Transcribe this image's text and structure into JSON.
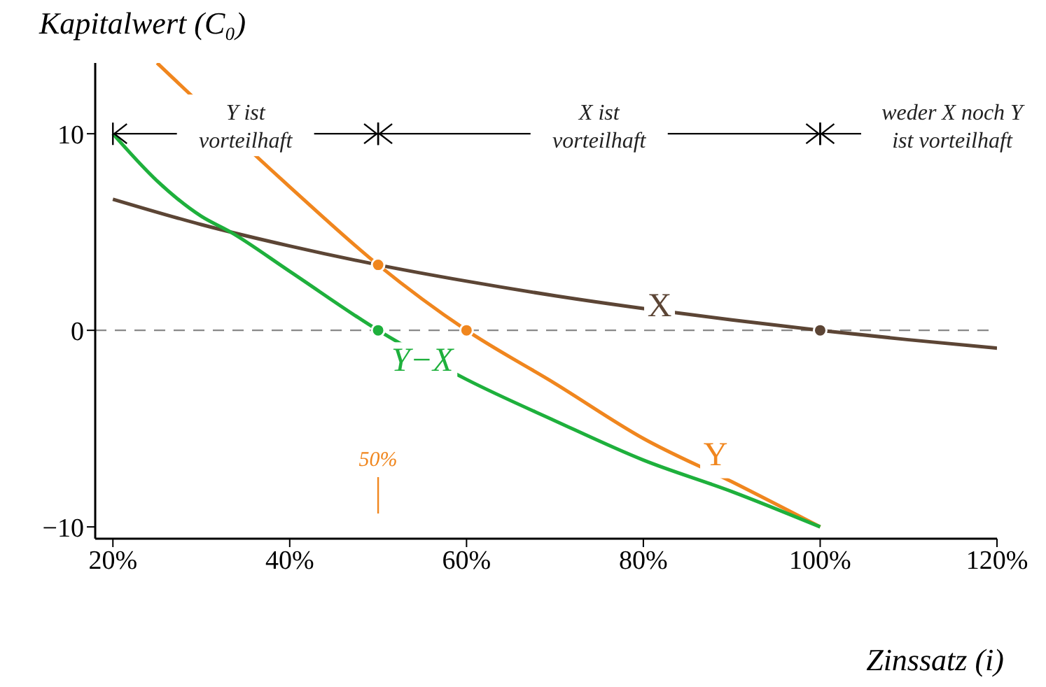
{
  "chart_data": {
    "type": "line",
    "xlabel": "Zinssatz (i)",
    "ylabel": "Kapitalwert (C₀)",
    "xlim": [
      18,
      120
    ],
    "ylim": [
      -10.6,
      13.6
    ],
    "xticks": [
      {
        "value": 20,
        "label": "20%"
      },
      {
        "value": 40,
        "label": "40%"
      },
      {
        "value": 60,
        "label": "60%"
      },
      {
        "value": 80,
        "label": "80%"
      },
      {
        "value": 100,
        "label": "100%"
      },
      {
        "value": 120,
        "label": "120%"
      }
    ],
    "yticks": [
      {
        "value": -10,
        "label": "−10"
      },
      {
        "value": 0,
        "label": "0"
      },
      {
        "value": 10,
        "label": "10"
      }
    ],
    "series": [
      {
        "name": "X",
        "color": "#5c4535",
        "x": [
          20,
          30,
          40,
          50,
          60,
          70,
          80,
          90,
          100,
          110,
          120
        ],
        "values": [
          6.67,
          5.38,
          4.29,
          3.33,
          2.5,
          1.76,
          1.11,
          0.53,
          0,
          -0.48,
          -0.91
        ]
      },
      {
        "name": "Y",
        "color": "#f0861e",
        "x": [
          25,
          40,
          50,
          60,
          70,
          80,
          90,
          100
        ],
        "values": [
          13.6,
          7.3,
          3.33,
          0,
          -2.7,
          -5.5,
          -7.7,
          -10
        ]
      },
      {
        "name": "Y−X",
        "color": "#1eb03c",
        "x": [
          20,
          25,
          30,
          33.3,
          40,
          50,
          60,
          70,
          80,
          90,
          100
        ],
        "values": [
          10,
          7.6,
          5.8,
          5,
          3,
          0,
          -2.5,
          -4.6,
          -6.6,
          -8.2,
          -10
        ]
      },
      {
        "type": "scatter",
        "color": "#f0861e",
        "x": [
          50,
          60
        ],
        "values": [
          3.33,
          0
        ]
      },
      {
        "type": "scatter",
        "color": "#1eb03c",
        "x": [
          50
        ],
        "values": [
          0
        ]
      },
      {
        "type": "scatter",
        "color": "#5c4535",
        "x": [
          100
        ],
        "values": [
          0
        ]
      }
    ],
    "ref_lines": [
      {
        "axis": "y",
        "value": 0,
        "color": "#888888",
        "line_style": "dashed"
      }
    ],
    "annotations": [
      "Y ist vorteilhaft",
      "X ist vorteilhaft",
      "weder X noch Y ist vorteilhaft",
      "50%"
    ]
  }
}
